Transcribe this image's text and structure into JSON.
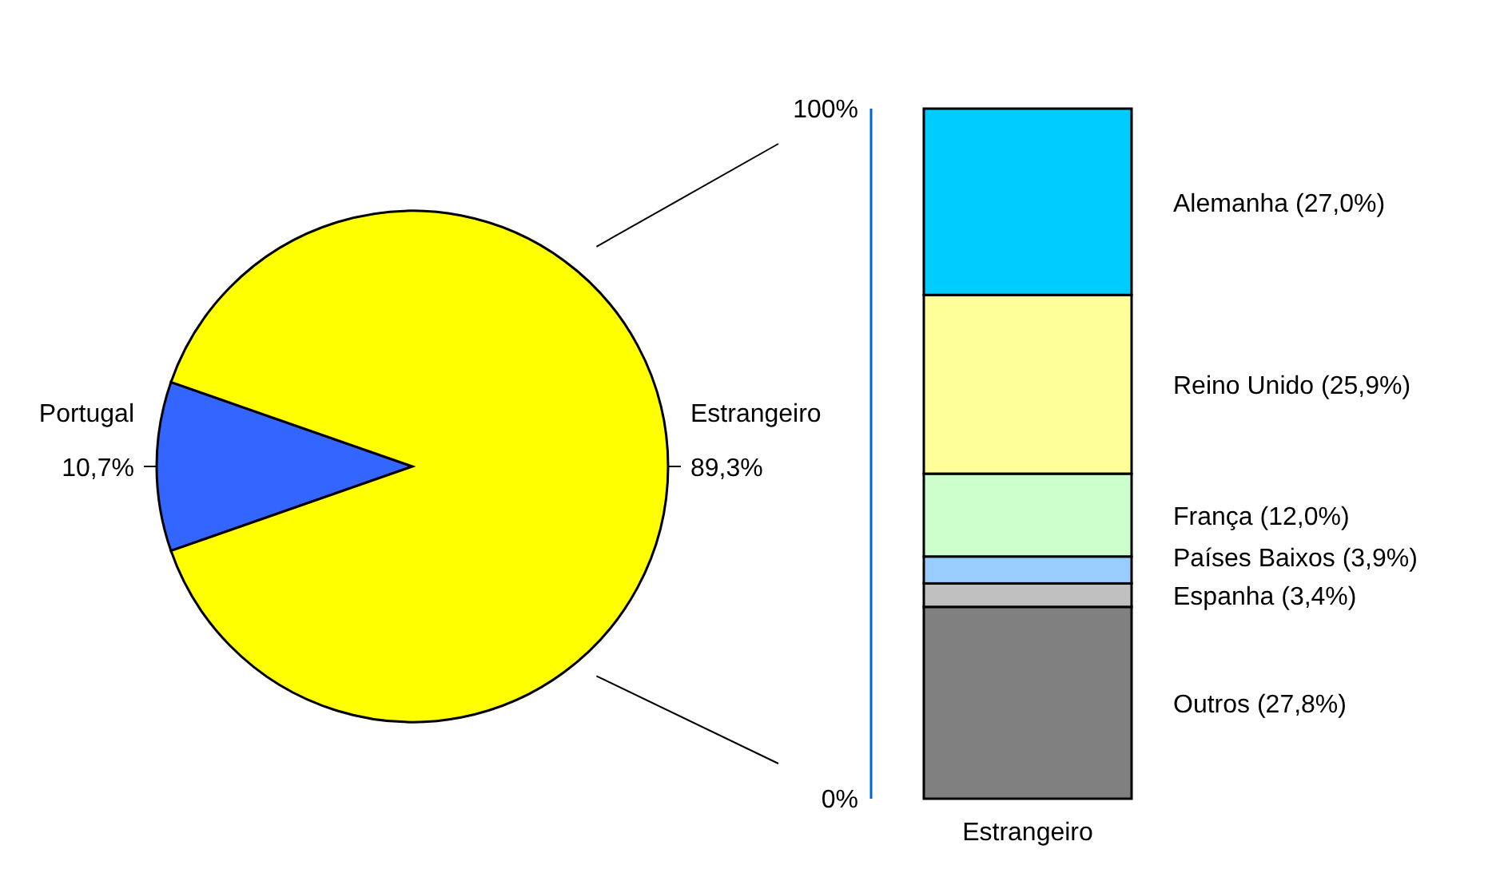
{
  "chart_data": [
    {
      "type": "pie",
      "categories": [
        "Portugal",
        "Estrangeiro"
      ],
      "values": [
        10.7,
        89.3
      ],
      "colors": [
        "#3366ff",
        "#ffff00"
      ],
      "value_labels": [
        "10,7%",
        "89,3%"
      ]
    },
    {
      "type": "bar",
      "stacked": true,
      "categories": [
        "Estrangeiro"
      ],
      "ylim": [
        0,
        1
      ],
      "yticks": [
        {
          "value": 0,
          "label": "0%"
        },
        {
          "value": 1,
          "label": "100%"
        }
      ],
      "series": [
        {
          "name": "Outros (27,8%)",
          "color": "#808080",
          "values": [
            0.278
          ]
        },
        {
          "name": "Espanha (3,4%)",
          "color": "#c0c0c0",
          "values": [
            0.034
          ]
        },
        {
          "name": "Países Baixos (3,9%)",
          "color": "#99ccff",
          "values": [
            0.039
          ]
        },
        {
          "name": "França (12,0%)",
          "color": "#ccffcc",
          "values": [
            0.12
          ]
        },
        {
          "name": "Reino Unido (25,9%)",
          "color": "#ffff99",
          "values": [
            0.259
          ]
        },
        {
          "name": "Alemanha (27,0%)",
          "color": "#00ccff",
          "values": [
            0.27
          ]
        }
      ]
    }
  ]
}
